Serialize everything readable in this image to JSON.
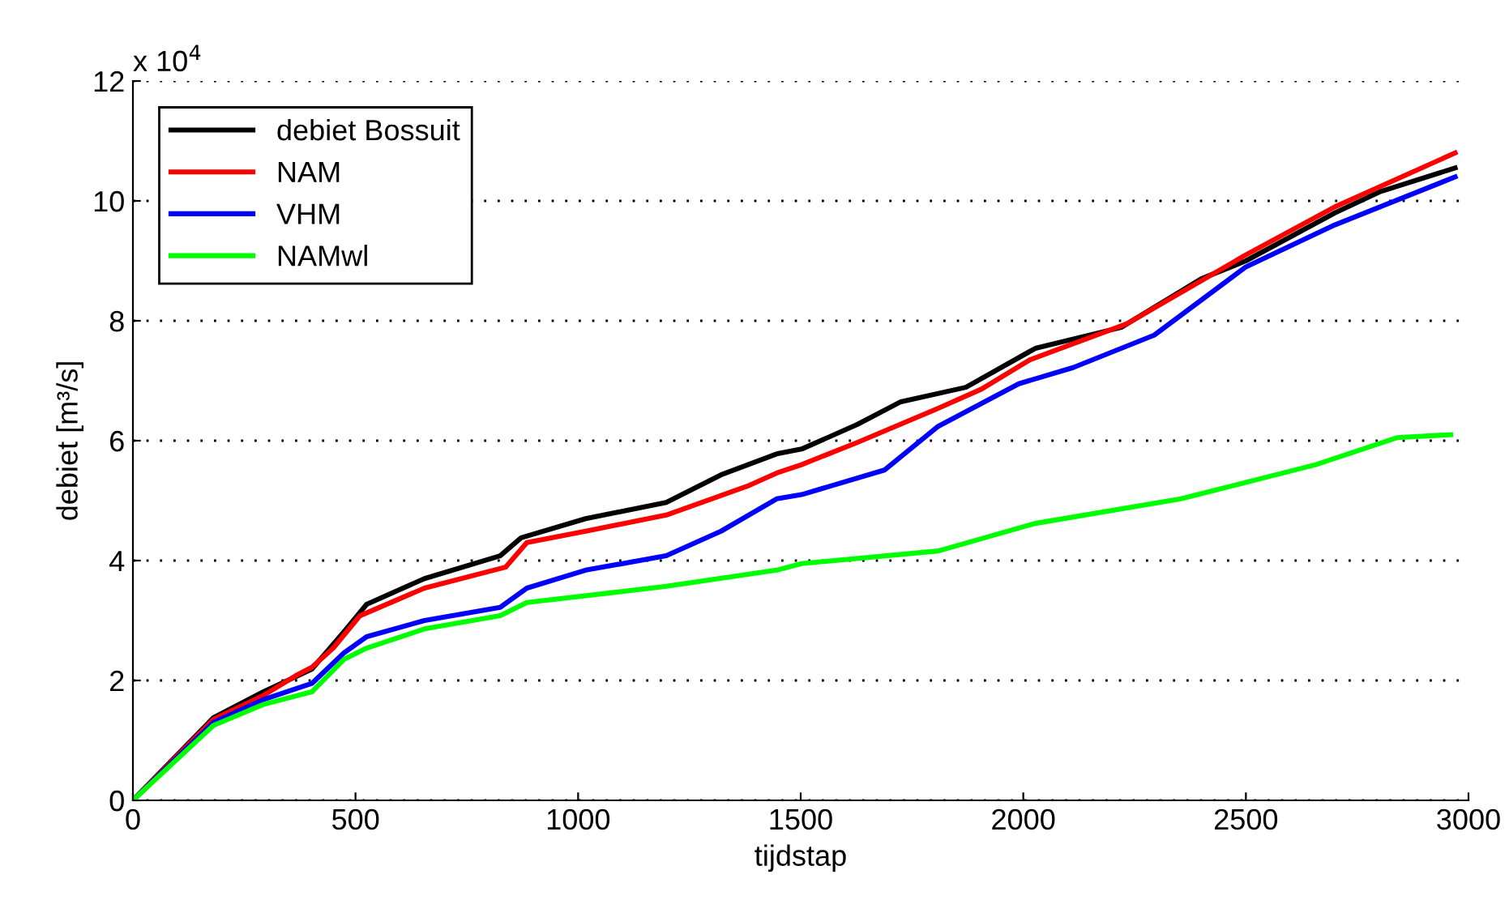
{
  "chart_data": {
    "type": "line",
    "xlabel": "tijdstap",
    "ylabel": "debiet [m³/s]",
    "annotations": [
      "x 10$^{4}$"
    ],
    "xlim": [
      0,
      3000
    ],
    "xticks": [
      0,
      500,
      1000,
      1500,
      2000,
      2500,
      3000
    ],
    "ylim": [
      0,
      12
    ],
    "yticks": [
      0,
      2,
      4,
      6,
      8,
      10,
      12
    ],
    "grid": "y",
    "legend": "top left",
    "line_style": "solid",
    "marker": "none",
    "series": [
      {
        "name": "debiet Bossuit",
        "color": "#000000",
        "x": [
          0,
          181,
          293,
          402,
          474,
          525,
          655,
          825,
          872,
          1017,
          1198,
          1321,
          1446,
          1502,
          1627,
          1725,
          1871,
          2027,
          2220,
          2400,
          2500,
          2700,
          2800,
          2970
        ],
        "values": [
          0,
          1.38,
          1.81,
          2.19,
          2.81,
          3.27,
          3.7,
          4.08,
          4.38,
          4.7,
          4.97,
          5.43,
          5.78,
          5.86,
          6.27,
          6.65,
          6.89,
          7.54,
          7.89,
          8.7,
          9.0,
          9.8,
          10.15,
          10.55
        ]
      },
      {
        "name": "NAM",
        "color": "#ff0000",
        "x": [
          0,
          181,
          293,
          366,
          402,
          450,
          510,
          655,
          837,
          885,
          1017,
          1198,
          1380,
          1446,
          1502,
          1627,
          1809,
          1906,
          2015,
          2233,
          2500,
          2700,
          2970
        ],
        "values": [
          0,
          1.35,
          1.75,
          2.08,
          2.22,
          2.54,
          3.08,
          3.54,
          3.89,
          4.3,
          4.49,
          4.76,
          5.24,
          5.46,
          5.6,
          5.97,
          6.54,
          6.86,
          7.35,
          7.95,
          9.1,
          9.9,
          10.8
        ]
      },
      {
        "name": "VHM",
        "color": "#0000ff",
        "x": [
          0,
          181,
          293,
          402,
          474,
          525,
          655,
          825,
          885,
          1017,
          1198,
          1321,
          1446,
          1502,
          1688,
          1809,
          1990,
          2112,
          2294,
          2500,
          2700,
          2970
        ],
        "values": [
          0,
          1.3,
          1.68,
          1.95,
          2.46,
          2.73,
          3.0,
          3.22,
          3.54,
          3.84,
          4.08,
          4.49,
          5.03,
          5.1,
          5.51,
          6.24,
          6.95,
          7.22,
          7.76,
          8.9,
          9.6,
          10.4
        ]
      },
      {
        "name": "NAMwl",
        "color": "#00ff00",
        "x": [
          0,
          181,
          293,
          402,
          474,
          525,
          655,
          825,
          885,
          1198,
          1446,
          1502,
          1809,
          2027,
          2354,
          2657,
          2839,
          2960
        ],
        "values": [
          0,
          1.25,
          1.6,
          1.81,
          2.35,
          2.54,
          2.86,
          3.08,
          3.3,
          3.57,
          3.84,
          3.95,
          4.16,
          4.62,
          5.03,
          5.6,
          6.05,
          6.1
        ]
      }
    ]
  }
}
